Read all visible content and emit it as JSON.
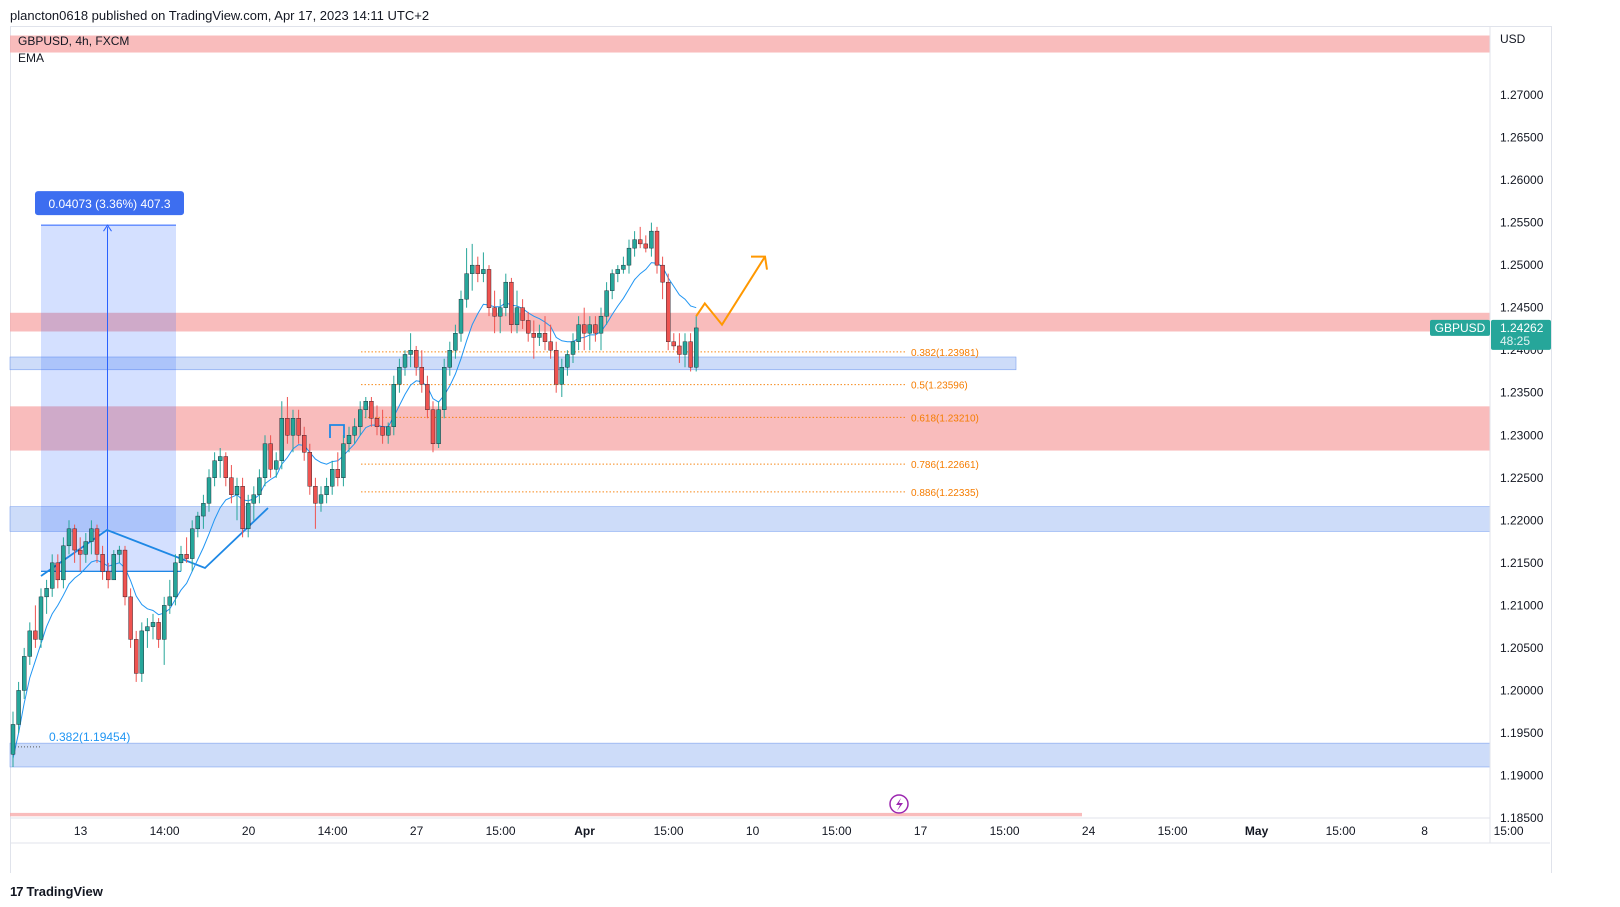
{
  "header": {
    "published": "plancton0618 published on TradingView.com, Apr 17, 2023 14:11 UTC+2"
  },
  "legend": {
    "symbol_line": "GBPUSD, 4h, FXCM",
    "indicator": "EMA"
  },
  "footer": {
    "brand": "TradingView",
    "logo_glyph": "17"
  },
  "colors": {
    "up": "#26a69a",
    "down": "#ef5350",
    "ema": "#2196f3",
    "supply_zone": "#f7a5a5",
    "demand_zone": "#bcd0f7",
    "fib": "#f57c00",
    "projection": "#ff9800",
    "price_label": "#26a69a",
    "measure_box": "#2962ff"
  },
  "chart_data": {
    "type": "candlestick",
    "symbol": "GBPUSD",
    "interval": "4h",
    "exchange": "FXCM",
    "currency_label": "USD",
    "ylim": [
      1.185,
      1.278
    ],
    "y_ticks": [
      "1.27000",
      "1.26500",
      "1.26000",
      "1.25500",
      "1.25000",
      "1.24500",
      "1.24000",
      "1.23500",
      "1.23000",
      "1.22500",
      "1.22000",
      "1.21500",
      "1.21000",
      "1.20500",
      "1.20000",
      "1.19500",
      "1.19000",
      "1.18500"
    ],
    "y_tick_values": [
      1.27,
      1.265,
      1.26,
      1.255,
      1.25,
      1.245,
      1.24,
      1.235,
      1.23,
      1.225,
      1.22,
      1.215,
      1.21,
      1.205,
      1.2,
      1.195,
      1.19,
      1.185
    ],
    "x_ticks": [
      "13",
      "14:00",
      "20",
      "14:00",
      "27",
      "15:00",
      "Apr",
      "15:00",
      "10",
      "15:00",
      "17",
      "15:00",
      "24",
      "15:00",
      "May",
      "15:00",
      "8",
      "15:00"
    ],
    "x_tick_index": [
      6,
      21,
      36,
      51,
      66,
      81,
      96,
      111,
      126,
      141,
      156,
      171,
      186,
      201,
      216,
      231,
      246,
      261
    ],
    "x_tick_bold": [
      false,
      false,
      false,
      false,
      false,
      false,
      true,
      false,
      false,
      false,
      false,
      false,
      false,
      false,
      true,
      false,
      false,
      false
    ],
    "candles": [
      [
        1.1925,
        1.1975,
        1.191,
        1.196
      ],
      [
        1.196,
        1.201,
        1.195,
        1.2
      ],
      [
        1.2,
        1.205,
        1.199,
        1.204
      ],
      [
        1.204,
        1.208,
        1.203,
        1.207
      ],
      [
        1.207,
        1.21,
        1.205,
        1.206
      ],
      [
        1.206,
        1.212,
        1.205,
        1.211
      ],
      [
        1.211,
        1.213,
        1.209,
        1.212
      ],
      [
        1.212,
        1.216,
        1.211,
        1.215
      ],
      [
        1.215,
        1.216,
        1.212,
        1.213
      ],
      [
        1.213,
        1.218,
        1.212,
        1.217
      ],
      [
        1.217,
        1.22,
        1.216,
        1.219
      ],
      [
        1.219,
        1.2195,
        1.215,
        1.2165
      ],
      [
        1.2165,
        1.218,
        1.214,
        1.216
      ],
      [
        1.216,
        1.2185,
        1.215,
        1.2175
      ],
      [
        1.2175,
        1.22,
        1.216,
        1.219
      ],
      [
        1.219,
        1.2195,
        1.215,
        1.216
      ],
      [
        1.216,
        1.217,
        1.213,
        1.214
      ],
      [
        1.214,
        1.215,
        1.212,
        1.213
      ],
      [
        1.213,
        1.2165,
        1.213,
        1.216
      ],
      [
        1.216,
        1.217,
        1.215,
        1.2165
      ],
      [
        1.2165,
        1.217,
        1.21,
        1.211
      ],
      [
        1.211,
        1.212,
        1.205,
        1.206
      ],
      [
        1.206,
        1.207,
        1.201,
        1.202
      ],
      [
        1.202,
        1.208,
        1.201,
        1.207
      ],
      [
        1.207,
        1.2085,
        1.205,
        1.2075
      ],
      [
        1.2075,
        1.209,
        1.206,
        1.208
      ],
      [
        1.208,
        1.2085,
        1.205,
        1.206
      ],
      [
        1.206,
        1.211,
        1.203,
        1.21
      ],
      [
        1.21,
        1.213,
        1.209,
        1.211
      ],
      [
        1.211,
        1.216,
        1.21,
        1.215
      ],
      [
        1.215,
        1.217,
        1.214,
        1.216
      ],
      [
        1.216,
        1.218,
        1.215,
        1.2155
      ],
      [
        1.2155,
        1.22,
        1.214,
        1.219
      ],
      [
        1.219,
        1.221,
        1.218,
        1.2205
      ],
      [
        1.2205,
        1.223,
        1.219,
        1.222
      ],
      [
        1.222,
        1.226,
        1.221,
        1.225
      ],
      [
        1.225,
        1.228,
        1.224,
        1.227
      ],
      [
        1.227,
        1.2285,
        1.225,
        1.2275
      ],
      [
        1.2275,
        1.228,
        1.224,
        1.225
      ],
      [
        1.225,
        1.2265,
        1.222,
        1.223
      ],
      [
        1.223,
        1.225,
        1.22,
        1.224
      ],
      [
        1.224,
        1.225,
        1.218,
        1.219
      ],
      [
        1.219,
        1.223,
        1.218,
        1.222
      ],
      [
        1.222,
        1.224,
        1.22,
        1.223
      ],
      [
        1.223,
        1.226,
        1.222,
        1.225
      ],
      [
        1.225,
        1.23,
        1.224,
        1.229
      ],
      [
        1.229,
        1.23,
        1.225,
        1.226
      ],
      [
        1.226,
        1.228,
        1.225,
        1.227
      ],
      [
        1.227,
        1.234,
        1.226,
        1.232
      ],
      [
        1.232,
        1.2345,
        1.229,
        1.23
      ],
      [
        1.23,
        1.233,
        1.228,
        1.232
      ],
      [
        1.232,
        1.233,
        1.229,
        1.23
      ],
      [
        1.23,
        1.231,
        1.227,
        1.228
      ],
      [
        1.228,
        1.229,
        1.223,
        1.224
      ],
      [
        1.224,
        1.225,
        1.219,
        1.222
      ],
      [
        1.222,
        1.224,
        1.221,
        1.223
      ],
      [
        1.223,
        1.225,
        1.222,
        1.224
      ],
      [
        1.224,
        1.227,
        1.223,
        1.226
      ],
      [
        1.226,
        1.228,
        1.224,
        1.225
      ],
      [
        1.225,
        1.23,
        1.224,
        1.229
      ],
      [
        1.229,
        1.231,
        1.228,
        1.23
      ],
      [
        1.23,
        1.232,
        1.229,
        1.231
      ],
      [
        1.231,
        1.234,
        1.23,
        1.233
      ],
      [
        1.233,
        1.2345,
        1.232,
        1.234
      ],
      [
        1.234,
        1.2345,
        1.231,
        1.232
      ],
      [
        1.232,
        1.2335,
        1.23,
        1.231
      ],
      [
        1.231,
        1.233,
        1.229,
        1.23
      ],
      [
        1.23,
        1.2315,
        1.229,
        1.231
      ],
      [
        1.231,
        1.237,
        1.23,
        1.236
      ],
      [
        1.236,
        1.239,
        1.235,
        1.238
      ],
      [
        1.238,
        1.24,
        1.237,
        1.2395
      ],
      [
        1.2395,
        1.242,
        1.238,
        1.24
      ],
      [
        1.24,
        1.2405,
        1.237,
        1.238
      ],
      [
        1.238,
        1.24,
        1.235,
        1.236
      ],
      [
        1.236,
        1.237,
        1.232,
        1.233
      ],
      [
        1.233,
        1.234,
        1.228,
        1.229
      ],
      [
        1.229,
        1.234,
        1.2285,
        1.233
      ],
      [
        1.233,
        1.239,
        1.232,
        1.238
      ],
      [
        1.238,
        1.241,
        1.237,
        1.24
      ],
      [
        1.24,
        1.243,
        1.239,
        1.242
      ],
      [
        1.242,
        1.247,
        1.241,
        1.246
      ],
      [
        1.246,
        1.252,
        1.245,
        1.249
      ],
      [
        1.249,
        1.2525,
        1.247,
        1.25
      ],
      [
        1.25,
        1.251,
        1.248,
        1.249
      ],
      [
        1.249,
        1.2515,
        1.248,
        1.2495
      ],
      [
        1.2495,
        1.25,
        1.244,
        1.245
      ],
      [
        1.245,
        1.247,
        1.242,
        1.244
      ],
      [
        1.244,
        1.246,
        1.242,
        1.245
      ],
      [
        1.245,
        1.249,
        1.244,
        1.248
      ],
      [
        1.248,
        1.2485,
        1.242,
        1.243
      ],
      [
        1.243,
        1.247,
        1.242,
        1.245
      ],
      [
        1.245,
        1.246,
        1.2425,
        1.2435
      ],
      [
        1.2435,
        1.2445,
        1.241,
        1.242
      ],
      [
        1.242,
        1.2435,
        1.239,
        1.2415
      ],
      [
        1.2415,
        1.243,
        1.2405,
        1.242
      ],
      [
        1.242,
        1.244,
        1.24,
        1.241
      ],
      [
        1.241,
        1.243,
        1.239,
        1.24
      ],
      [
        1.24,
        1.241,
        1.235,
        1.236
      ],
      [
        1.236,
        1.239,
        1.2345,
        1.238
      ],
      [
        1.238,
        1.24,
        1.237,
        1.2395
      ],
      [
        1.2395,
        1.242,
        1.2385,
        1.241
      ],
      [
        1.241,
        1.244,
        1.24,
        1.243
      ],
      [
        1.243,
        1.245,
        1.24,
        1.242
      ],
      [
        1.242,
        1.244,
        1.24,
        1.243
      ],
      [
        1.243,
        1.244,
        1.241,
        1.242
      ],
      [
        1.242,
        1.245,
        1.24,
        1.244
      ],
      [
        1.244,
        1.248,
        1.243,
        1.247
      ],
      [
        1.247,
        1.2495,
        1.246,
        1.249
      ],
      [
        1.249,
        1.25,
        1.248,
        1.2495
      ],
      [
        1.2495,
        1.251,
        1.249,
        1.25
      ],
      [
        1.25,
        1.253,
        1.249,
        1.252
      ],
      [
        1.252,
        1.254,
        1.251,
        1.253
      ],
      [
        1.253,
        1.2545,
        1.252,
        1.2525
      ],
      [
        1.2525,
        1.2535,
        1.2515,
        1.252
      ],
      [
        1.252,
        1.255,
        1.251,
        1.254
      ],
      [
        1.254,
        1.2545,
        1.249,
        1.25
      ],
      [
        1.25,
        1.251,
        1.246,
        1.248
      ],
      [
        1.248,
        1.249,
        1.24,
        1.241
      ],
      [
        1.241,
        1.242,
        1.24,
        1.2405
      ],
      [
        1.2405,
        1.242,
        1.2385,
        1.2395
      ],
      [
        1.2395,
        1.242,
        1.238,
        1.241
      ],
      [
        1.241,
        1.242,
        1.2375,
        1.238
      ],
      [
        1.238,
        1.244,
        1.2375,
        1.24262
      ]
    ],
    "candle_slot_start": 0,
    "ema": [
      1.192,
      1.195,
      1.1985,
      1.2015,
      1.2035,
      1.2055,
      1.2075,
      1.209,
      1.21,
      1.2112,
      1.2125,
      1.2132,
      1.2137,
      1.2144,
      1.2151,
      1.2153,
      1.215,
      1.2146,
      1.2148,
      1.215,
      1.2144,
      1.2129,
      1.2111,
      1.2101,
      1.2096,
      1.2094,
      1.2089,
      1.2091,
      1.2096,
      1.2107,
      1.2118,
      1.2126,
      1.214,
      1.2154,
      1.2168,
      1.2184,
      1.2201,
      1.2215,
      1.2224,
      1.2227,
      1.223,
      1.2224,
      1.2223,
      1.2225,
      1.223,
      1.2243,
      1.2248,
      1.2252,
      1.2266,
      1.2274,
      1.2284,
      1.2289,
      1.2288,
      1.228,
      1.2272,
      1.2268,
      1.2266,
      1.2269,
      1.227,
      1.2276,
      1.2283,
      1.229,
      1.23,
      1.2309,
      1.2312,
      1.2312,
      1.231,
      1.231,
      1.2322,
      1.2335,
      1.2348,
      1.2359,
      1.2364,
      1.2363,
      1.2357,
      1.2343,
      1.2339,
      1.2347,
      1.2358,
      1.2372,
      1.239,
      1.2411,
      1.243,
      1.2443,
      1.2454,
      1.2453,
      1.2451,
      1.2451,
      1.2456,
      1.2453,
      1.2452,
      1.2449,
      1.2444,
      1.244,
      1.2437,
      1.2433,
      1.2428,
      1.2415,
      1.2411,
      1.241,
      1.241,
      1.2414,
      1.2415,
      1.2418,
      1.2418,
      1.2422,
      1.2431,
      1.2442,
      1.2452,
      1.2461,
      1.2472,
      1.2483,
      1.249,
      1.2495,
      1.2503,
      1.2502,
      1.2498,
      1.2485,
      1.2475,
      1.2465,
      1.246,
      1.2452,
      1.245
    ],
    "zones": [
      {
        "kind": "supply",
        "top": 1.277,
        "bottom": 1.275,
        "end": "full"
      },
      {
        "kind": "supply",
        "top": 1.2444,
        "bottom": 1.2422,
        "end": "full"
      },
      {
        "kind": "supply",
        "top": 1.2334,
        "bottom": 1.2282,
        "end": "full"
      },
      {
        "kind": "demand",
        "top": 1.2216,
        "bottom": 1.2187,
        "end": "full"
      },
      {
        "kind": "demand",
        "top": 1.2392,
        "bottom": 1.2377,
        "end": "partial"
      },
      {
        "kind": "demand",
        "top": 1.1938,
        "bottom": 1.191,
        "end": "full"
      },
      {
        "kind": "supply",
        "top": 1.1856,
        "bottom": 1.1852,
        "end": "short"
      }
    ],
    "fib_levels": [
      {
        "label": "0.382(1.23981)",
        "value": 1.23981
      },
      {
        "label": "0.5(1.23596)",
        "value": 1.23596
      },
      {
        "label": "0.618(1.23210)",
        "value": 1.2321
      },
      {
        "label": "0.786(1.22661)",
        "value": 1.22661
      },
      {
        "label": "0.886(1.22335)",
        "value": 1.22335
      }
    ],
    "left_fib": {
      "label": "0.382(1.19454)",
      "value": 1.19454
    },
    "measure": {
      "label": "0.04073 (3.36%) 407.3",
      "from": 1.214,
      "to": 1.2547
    },
    "projection": [
      [
        1.244,
        0
      ],
      [
        1.2455,
        1
      ],
      [
        1.243,
        3
      ],
      [
        1.251,
        8
      ]
    ],
    "last_price": {
      "symbol": "GBPUSD",
      "price": "1.24262",
      "countdown": "48:25",
      "value": 1.24262
    }
  }
}
